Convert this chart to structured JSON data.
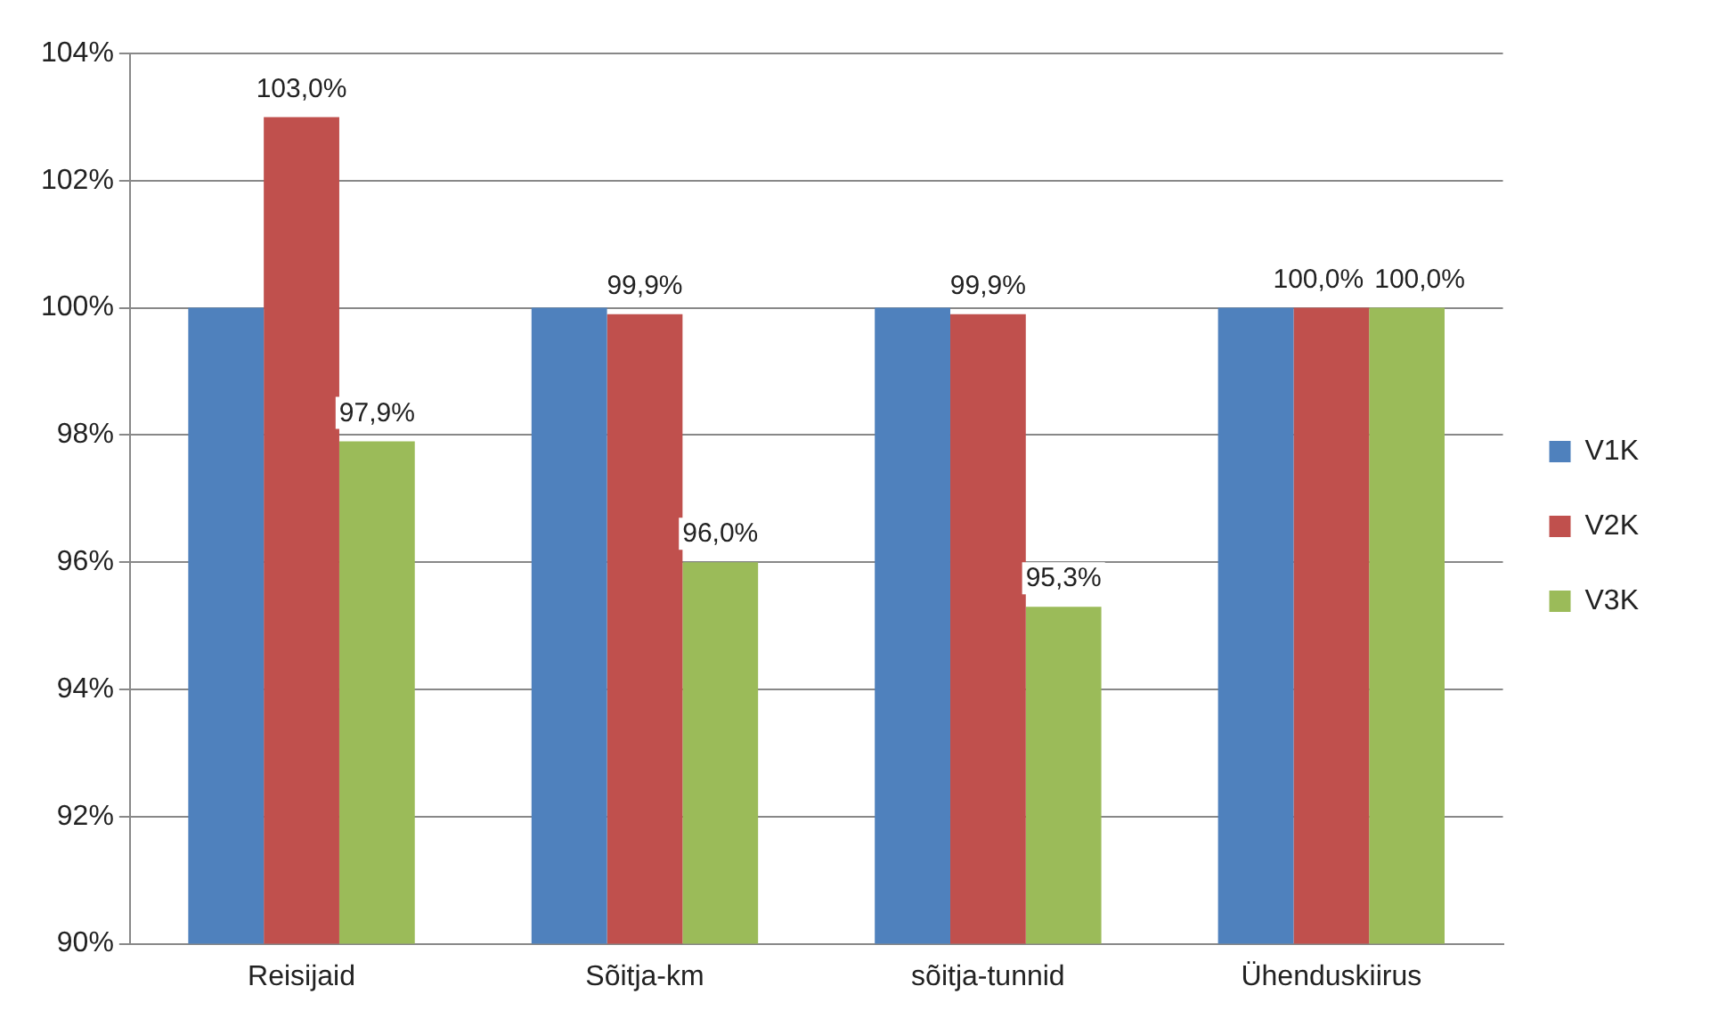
{
  "chart_data": {
    "type": "bar",
    "categories": [
      "Reisijaid",
      "Sõitja-km",
      "sõitja-tunnid",
      "Ühenduskiirus"
    ],
    "series": [
      {
        "name": "V1K",
        "color": "#4f81bd",
        "values": [
          100,
          100,
          100,
          100
        ]
      },
      {
        "name": "V2K",
        "color": "#c0504d",
        "values": [
          103.0,
          99.9,
          99.9,
          100.0
        ],
        "value_labels": [
          "103,0%",
          "99,9%",
          "99,9%",
          "100,0%"
        ]
      },
      {
        "name": "V3K",
        "color": "#9bbb59",
        "values": [
          97.9,
          96.0,
          95.3,
          100.0
        ],
        "value_labels": [
          "97,9%",
          "96,0%",
          "95,3%",
          "100,0%"
        ]
      }
    ],
    "ylim": [
      90,
      104
    ],
    "yticks": [
      {
        "value": 90,
        "label": "90%"
      },
      {
        "value": 92,
        "label": "92%"
      },
      {
        "value": 94,
        "label": "94%"
      },
      {
        "value": 96,
        "label": "96%"
      },
      {
        "value": 98,
        "label": "98%"
      },
      {
        "value": 100,
        "label": "100%"
      },
      {
        "value": 102,
        "label": "102%"
      },
      {
        "value": 104,
        "label": "104%"
      }
    ],
    "grid": "y",
    "legend": "right"
  }
}
